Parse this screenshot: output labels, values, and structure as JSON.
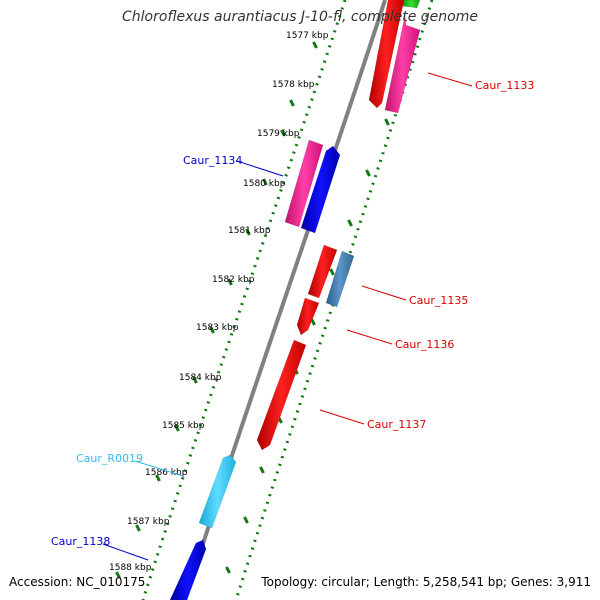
{
  "title": "Chloroflexus aurantiacus J-10-fl, complete genome",
  "accession": "Accession: NC_010175",
  "topology": "Topology: circular; Length: 5,258,541 bp; Genes: 3,911",
  "scale_labels": [
    "1577 kbp",
    "1578 kbp",
    "1579 kbp",
    "1580 kbp",
    "1581 kbp",
    "1582 kbp",
    "1583 kbp",
    "1584 kbp",
    "1585 kbp",
    "1586 kbp",
    "1587 kbp",
    "1588 kbp"
  ],
  "gene_labels": [
    {
      "name": "Caur_1133",
      "color": "#dd0000"
    },
    {
      "name": "Caur_1134",
      "color": "#0000cc"
    },
    {
      "name": "Caur_1135",
      "color": "#dd0000"
    },
    {
      "name": "Caur_1136",
      "color": "#dd0000"
    },
    {
      "name": "Caur_1137",
      "color": "#dd0000"
    },
    {
      "name": "Caur_R0019",
      "color": "#33bbee"
    },
    {
      "name": "Caur_1138",
      "color": "#0000cc"
    }
  ],
  "colors": {
    "backbone": "#808080",
    "tick_strand": "#117711",
    "cds_red": "#ee0000",
    "cds_pink": "#ff1493",
    "cds_blue": "#0000ee",
    "cds_steelblue": "#4682b4",
    "rna_cyan": "#33ccff",
    "cds_green": "#22cc22"
  }
}
